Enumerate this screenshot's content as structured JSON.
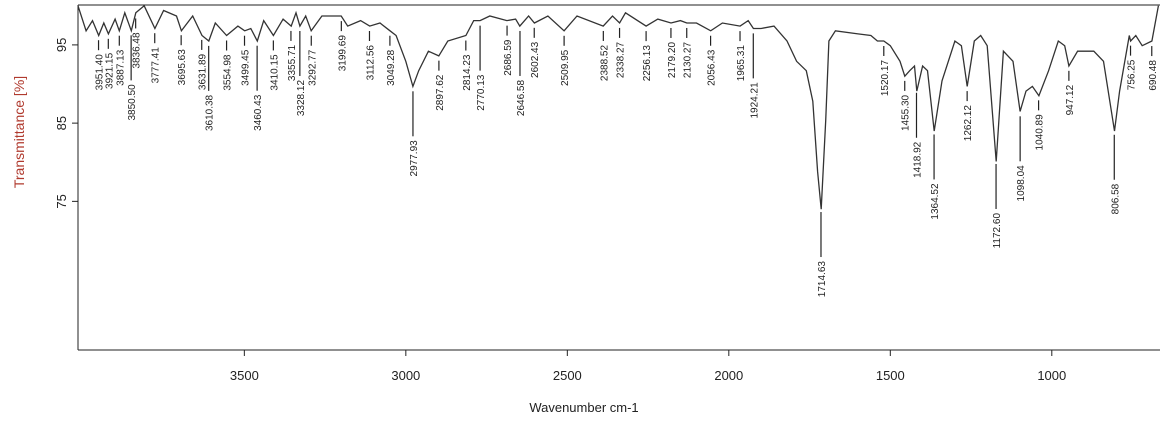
{
  "chart_data": {
    "type": "line",
    "xlabel": "Wavenumber cm-1",
    "ylabel": "Transmittance [%]",
    "xlim": [
      4015,
      665
    ],
    "ylim": [
      56,
      100.1
    ],
    "xticks": [
      3500,
      3000,
      2500,
      2000,
      1500,
      1000
    ],
    "yticks": [
      95,
      85,
      75
    ],
    "x": [
      4015,
      3990,
      3970,
      3951,
      3935,
      3921,
      3900,
      3887,
      3870,
      3850,
      3836,
      3810,
      3777,
      3750,
      3710,
      3695,
      3660,
      3631,
      3610,
      3590,
      3555,
      3520,
      3499,
      3480,
      3460,
      3440,
      3410,
      3380,
      3355,
      3340,
      3328,
      3310,
      3293,
      3260,
      3200,
      3180,
      3140,
      3112,
      3080,
      3049,
      3030,
      3000,
      2978,
      2960,
      2930,
      2898,
      2870,
      2814,
      2790,
      2770,
      2740,
      2687,
      2660,
      2647,
      2620,
      2602,
      2560,
      2510,
      2470,
      2389,
      2360,
      2338,
      2320,
      2256,
      2220,
      2179,
      2150,
      2130,
      2100,
      2056,
      2020,
      1965,
      1940,
      1924,
      1900,
      1860,
      1820,
      1790,
      1760,
      1740,
      1725,
      1714,
      1700,
      1690,
      1670,
      1600,
      1560,
      1540,
      1520,
      1500,
      1470,
      1455,
      1440,
      1425,
      1418,
      1400,
      1385,
      1364,
      1340,
      1300,
      1280,
      1262,
      1240,
      1220,
      1200,
      1172,
      1150,
      1120,
      1098,
      1080,
      1060,
      1040,
      1010,
      980,
      960,
      947,
      920,
      870,
      840,
      806,
      790,
      760,
      756,
      740,
      720,
      690,
      670
    ],
    "series": [
      {
        "name": "Transmittance",
        "color": "#333333",
        "values": [
          100,
          96.8,
          98.1,
          96.2,
          97.8,
          96.4,
          98.3,
          96.8,
          99.1,
          96.8,
          99.1,
          100,
          97.1,
          99.4,
          98.7,
          96.8,
          98.7,
          96.2,
          95.5,
          97.8,
          96.2,
          97.4,
          96.8,
          97.1,
          95.5,
          98.1,
          96.2,
          98.3,
          97.4,
          99.1,
          97.4,
          98.7,
          96.8,
          98.7,
          98.7,
          97.4,
          98.1,
          97.4,
          97.8,
          96.8,
          96.2,
          92.9,
          89.7,
          91.7,
          94.2,
          93.6,
          95.5,
          96.2,
          98.1,
          98.1,
          98.7,
          98.1,
          98.3,
          97.4,
          98.7,
          97.8,
          98.7,
          96.8,
          98.7,
          97.4,
          98.7,
          97.8,
          99.1,
          97.4,
          98.3,
          97.8,
          98.1,
          97.8,
          97.8,
          96.8,
          97.8,
          97.4,
          98.1,
          97.1,
          97.1,
          97.4,
          95.5,
          92.9,
          91.7,
          87.8,
          78.8,
          74,
          85.3,
          95.5,
          96.8,
          96.4,
          96.2,
          95.5,
          95.5,
          94.9,
          92.9,
          91,
          91.7,
          92.3,
          89.1,
          92.3,
          91.7,
          84,
          90.4,
          95.5,
          94.9,
          89.7,
          95.5,
          96.2,
          94.9,
          80.1,
          94.2,
          92.9,
          86.5,
          89.1,
          89.7,
          88.5,
          91.7,
          95.5,
          94.9,
          92.3,
          94.2,
          94.2,
          92.9,
          84,
          89.1,
          96.2,
          95.5,
          96.2,
          94.9,
          95.5,
          100
        ]
      }
    ],
    "peaks": [
      {
        "value": 3951.4,
        "label": "3951.40"
      },
      {
        "value": 3921.15,
        "label": "3921.15"
      },
      {
        "value": 3887.13,
        "label": "3887.13"
      },
      {
        "value": 3850.5,
        "label": "3850.50"
      },
      {
        "value": 3836.48,
        "label": "3836.48"
      },
      {
        "value": 3777.41,
        "label": "3777.41"
      },
      {
        "value": 3695.63,
        "label": "3695.63"
      },
      {
        "value": 3631.89,
        "label": "3631.89"
      },
      {
        "value": 3610.38,
        "label": "3610.38"
      },
      {
        "value": 3554.98,
        "label": "3554.98"
      },
      {
        "value": 3499.45,
        "label": "3499.45"
      },
      {
        "value": 3460.43,
        "label": "3460.43"
      },
      {
        "value": 3410.15,
        "label": "3410.15"
      },
      {
        "value": 3355.71,
        "label": "3355.71"
      },
      {
        "value": 3328.12,
        "label": "3328.12"
      },
      {
        "value": 3292.77,
        "label": "3292.77"
      },
      {
        "value": 3199.69,
        "label": "3199.69"
      },
      {
        "value": 3112.56,
        "label": "3112.56"
      },
      {
        "value": 3049.28,
        "label": "3049.28"
      },
      {
        "value": 2977.93,
        "label": "2977.93"
      },
      {
        "value": 2897.62,
        "label": "2897.62"
      },
      {
        "value": 2814.23,
        "label": "2814.23"
      },
      {
        "value": 2770.13,
        "label": "2770.13"
      },
      {
        "value": 2686.59,
        "label": "2686.59"
      },
      {
        "value": 2646.58,
        "label": "2646.58"
      },
      {
        "value": 2602.43,
        "label": "2602.43"
      },
      {
        "value": 2509.95,
        "label": "2509.95"
      },
      {
        "value": 2388.52,
        "label": "2388.52"
      },
      {
        "value": 2338.27,
        "label": "2338.27"
      },
      {
        "value": 2256.13,
        "label": "2256.13"
      },
      {
        "value": 2179.2,
        "label": "2179.20"
      },
      {
        "value": 2130.27,
        "label": "2130.27"
      },
      {
        "value": 2056.43,
        "label": "2056.43"
      },
      {
        "value": 1965.31,
        "label": "1965.31"
      },
      {
        "value": 1924.21,
        "label": "1924.21"
      },
      {
        "value": 1714.63,
        "label": "1714.63"
      },
      {
        "value": 1520.17,
        "label": "1520.17"
      },
      {
        "value": 1455.3,
        "label": "1455.30"
      },
      {
        "value": 1418.92,
        "label": "1418.92"
      },
      {
        "value": 1364.52,
        "label": "1364.52"
      },
      {
        "value": 1262.12,
        "label": "1262.12"
      },
      {
        "value": 1172.6,
        "label": "1172.60"
      },
      {
        "value": 1098.04,
        "label": "1098.04"
      },
      {
        "value": 1040.89,
        "label": "1040.89"
      },
      {
        "value": 947.12,
        "label": "947.12"
      },
      {
        "value": 806.58,
        "label": "806.58"
      },
      {
        "value": 756.25,
        "label": "756.25"
      },
      {
        "value": 690.48,
        "label": "690.48"
      }
    ]
  }
}
